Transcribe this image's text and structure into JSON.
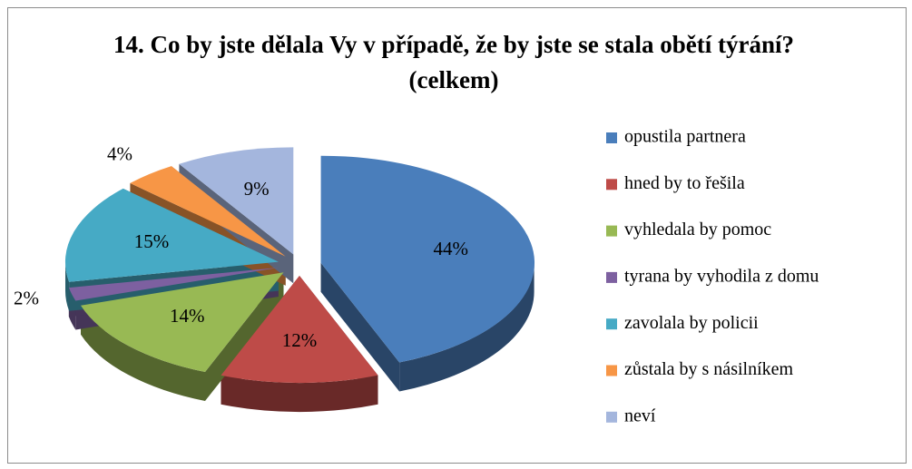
{
  "chart_data": {
    "type": "pie",
    "title": "14. Co by jste dělala Vy v případě, že by jste se stala obětí týrání? (celkem)",
    "categories": [
      "opustila partnera",
      "hned by to řešila",
      "vyhledala by pomoc",
      "tyrana by vyhodila z domu",
      "zavolala by policii",
      "zůstala by s násilníkem",
      "neví"
    ],
    "values": [
      44,
      12,
      14,
      2,
      15,
      4,
      9
    ],
    "value_labels": [
      "44%",
      "12%",
      "14%",
      "2%",
      "15%",
      "4%",
      "9%"
    ],
    "colors": [
      "#4a7ebb",
      "#be4b48",
      "#98b954",
      "#7d60a0",
      "#46aac5",
      "#f79646",
      "#a4b6dd"
    ],
    "legend": "right"
  }
}
